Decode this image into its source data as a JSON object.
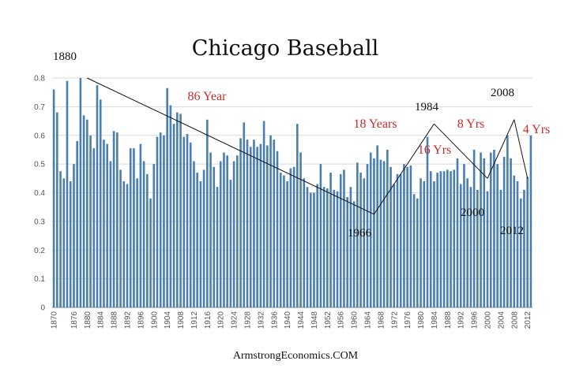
{
  "chart_data": {
    "type": "bar",
    "title": "Chicago Baseball",
    "xlabel": "",
    "ylabel": "",
    "ylim": [
      0,
      0.8
    ],
    "yticks": [
      "0",
      "0.1",
      "0.2",
      "0.3",
      "0.4",
      "0.5",
      "0.6",
      "0.7",
      "0.8"
    ],
    "grid": true,
    "bar_color": "#4a7fb0",
    "x_start": 1870,
    "x_tick_labels": [
      "1870",
      "1876",
      "1880",
      "1884",
      "1888",
      "1892",
      "1896",
      "1900",
      "1904",
      "1908",
      "1912",
      "1916",
      "1920",
      "1924",
      "1928",
      "1932",
      "1936",
      "1940",
      "1944",
      "1948",
      "1952",
      "1956",
      "1960",
      "1964",
      "1968",
      "1972",
      "1976",
      "1980",
      "1984",
      "1988",
      "1992",
      "1996",
      "2000",
      "2004",
      "2008",
      "2012"
    ],
    "values": [
      0.76,
      0.68,
      0.475,
      0.45,
      0.79,
      0.44,
      0.5,
      0.58,
      0.8,
      0.67,
      0.655,
      0.6,
      0.555,
      0.775,
      0.725,
      0.585,
      0.57,
      0.51,
      0.615,
      0.61,
      0.48,
      0.44,
      0.43,
      0.555,
      0.555,
      0.45,
      0.57,
      0.51,
      0.465,
      0.38,
      0.5,
      0.595,
      0.61,
      0.6,
      0.765,
      0.705,
      0.64,
      0.68,
      0.675,
      0.595,
      0.605,
      0.575,
      0.51,
      0.47,
      0.44,
      0.48,
      0.655,
      0.54,
      0.49,
      0.42,
      0.51,
      0.54,
      0.53,
      0.445,
      0.51,
      0.53,
      0.59,
      0.645,
      0.585,
      0.56,
      0.585,
      0.56,
      0.57,
      0.65,
      0.565,
      0.6,
      0.585,
      0.545,
      0.47,
      0.46,
      0.44,
      0.485,
      0.49,
      0.64,
      0.54,
      0.45,
      0.42,
      0.4,
      0.4,
      0.43,
      0.5,
      0.42,
      0.415,
      0.47,
      0.41,
      0.405,
      0.465,
      0.48,
      0.385,
      0.42,
      0.37,
      0.505,
      0.47,
      0.45,
      0.5,
      0.54,
      0.52,
      0.565,
      0.515,
      0.51,
      0.55,
      0.49,
      0.43,
      0.465,
      0.465,
      0.5,
      0.49,
      0.495,
      0.395,
      0.38,
      0.45,
      0.44,
      0.595,
      0.475,
      0.44,
      0.47,
      0.475,
      0.475,
      0.48,
      0.475,
      0.48,
      0.52,
      0.43,
      0.5,
      0.45,
      0.42,
      0.55,
      0.41,
      0.54,
      0.52,
      0.405,
      0.54,
      0.55,
      0.5,
      0.41,
      0.525,
      0.6,
      0.52,
      0.46,
      0.44,
      0.38,
      0.41,
      0.455,
      0.6
    ],
    "annotations": {
      "years": [
        "1880",
        "1966",
        "1984",
        "2000",
        "2008",
        "2012"
      ],
      "periods": [
        "86 Year",
        "18 Years",
        "16 Yrs",
        "8 Yrs",
        "4 Yrs"
      ]
    },
    "trend_lines": [
      {
        "from": [
          1880,
          0.8
        ],
        "to": [
          1966,
          0.325
        ]
      },
      {
        "from": [
          1966,
          0.325
        ],
        "to": [
          1984,
          0.64
        ]
      },
      {
        "from": [
          1984,
          0.64
        ],
        "to": [
          2000,
          0.45
        ]
      },
      {
        "from": [
          2000,
          0.45
        ],
        "to": [
          2008,
          0.655
        ]
      },
      {
        "from": [
          2008,
          0.655
        ],
        "to": [
          2012,
          0.45
        ]
      }
    ]
  },
  "footer": "ArmstrongEconomics.COM"
}
